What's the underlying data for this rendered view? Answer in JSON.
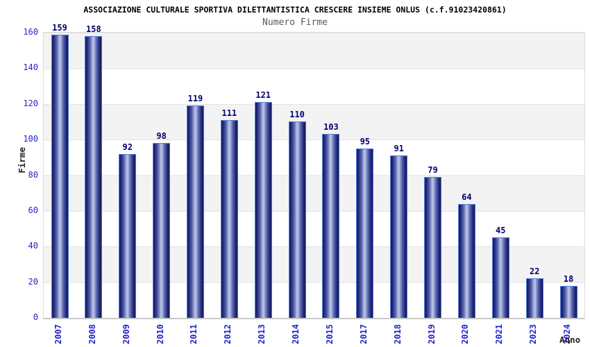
{
  "chart_data": {
    "type": "bar",
    "title": "ASSOCIAZIONE CULTURALE SPORTIVA DILETTANTISTICA CRESCERE INSIEME ONLUS (c.f.91023420861)",
    "subtitle": "Numero Firme",
    "xlabel": "Anno",
    "ylabel": "Firme",
    "categories": [
      "2007",
      "2008",
      "2009",
      "2010",
      "2011",
      "2012",
      "2013",
      "2014",
      "2015",
      "2017",
      "2018",
      "2019",
      "2020",
      "2021",
      "2023",
      "2024"
    ],
    "values": [
      159,
      158,
      92,
      98,
      119,
      111,
      121,
      110,
      103,
      95,
      91,
      79,
      64,
      45,
      22,
      18
    ],
    "yticks": [
      0,
      20,
      40,
      60,
      80,
      100,
      120,
      140,
      160
    ],
    "ylim": [
      0,
      160
    ],
    "grid": true,
    "legend_position": "none",
    "band_stripes": true,
    "colors": {
      "bar_dark": "#17175c",
      "bar_light": "#bfc8ea",
      "bar_border": "#4f7de0",
      "tick_label": "#2323cd",
      "value_label": "#00006b",
      "band_gray": "#f3f3f3",
      "grid_line": "#e2e2e2",
      "title": "#000000",
      "subtitle": "#595959",
      "axis_title": "#222222"
    }
  }
}
